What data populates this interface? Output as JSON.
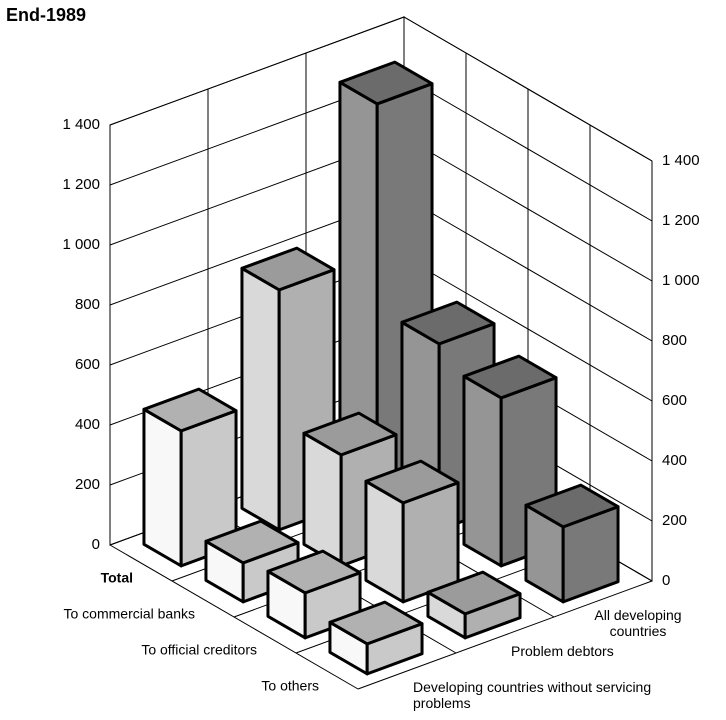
{
  "chart_data": {
    "type": "bar3d",
    "title": "End-1989",
    "categories": [
      "Total",
      "To commercial banks",
      "To official creditors",
      "To others"
    ],
    "series": [
      {
        "name": "All developing countries",
        "color": "#8e8e8e",
        "values": [
          1300,
          620,
          560,
          250
        ]
      },
      {
        "name": "Problem debtors",
        "color": "#cfcfcf",
        "values": [
          800,
          370,
          330,
          80
        ]
      },
      {
        "name": "Developing countries without servicing problems",
        "color": "#ececec",
        "values": [
          450,
          130,
          150,
          100
        ]
      }
    ],
    "ylim": [
      0,
      1400
    ],
    "yticks": [
      0,
      200,
      400,
      600,
      800,
      {
        "value": 1000,
        "label": "1 000"
      },
      {
        "value": 1200,
        "label": "1 200"
      },
      {
        "value": 1400,
        "label": "1 400"
      }
    ],
    "grid": true
  }
}
